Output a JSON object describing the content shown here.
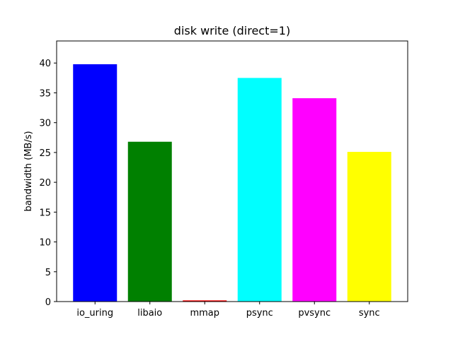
{
  "chart_data": {
    "type": "bar",
    "title": "disk write (direct=1)",
    "xlabel": "",
    "ylabel": "bandwidth (MB/s)",
    "categories": [
      "io_uring",
      "libaio",
      "mmap",
      "psync",
      "pvsync",
      "sync"
    ],
    "values": [
      39.8,
      26.8,
      0.2,
      37.5,
      34.1,
      25.1
    ],
    "colors": [
      "#0000ff",
      "#008000",
      "#ff0000",
      "#00ffff",
      "#ff00ff",
      "#ffff00"
    ],
    "ylim": [
      0,
      43.7
    ],
    "yticks": [
      0,
      5,
      10,
      15,
      20,
      25,
      30,
      35,
      40
    ],
    "grid": false,
    "legend": "none"
  }
}
